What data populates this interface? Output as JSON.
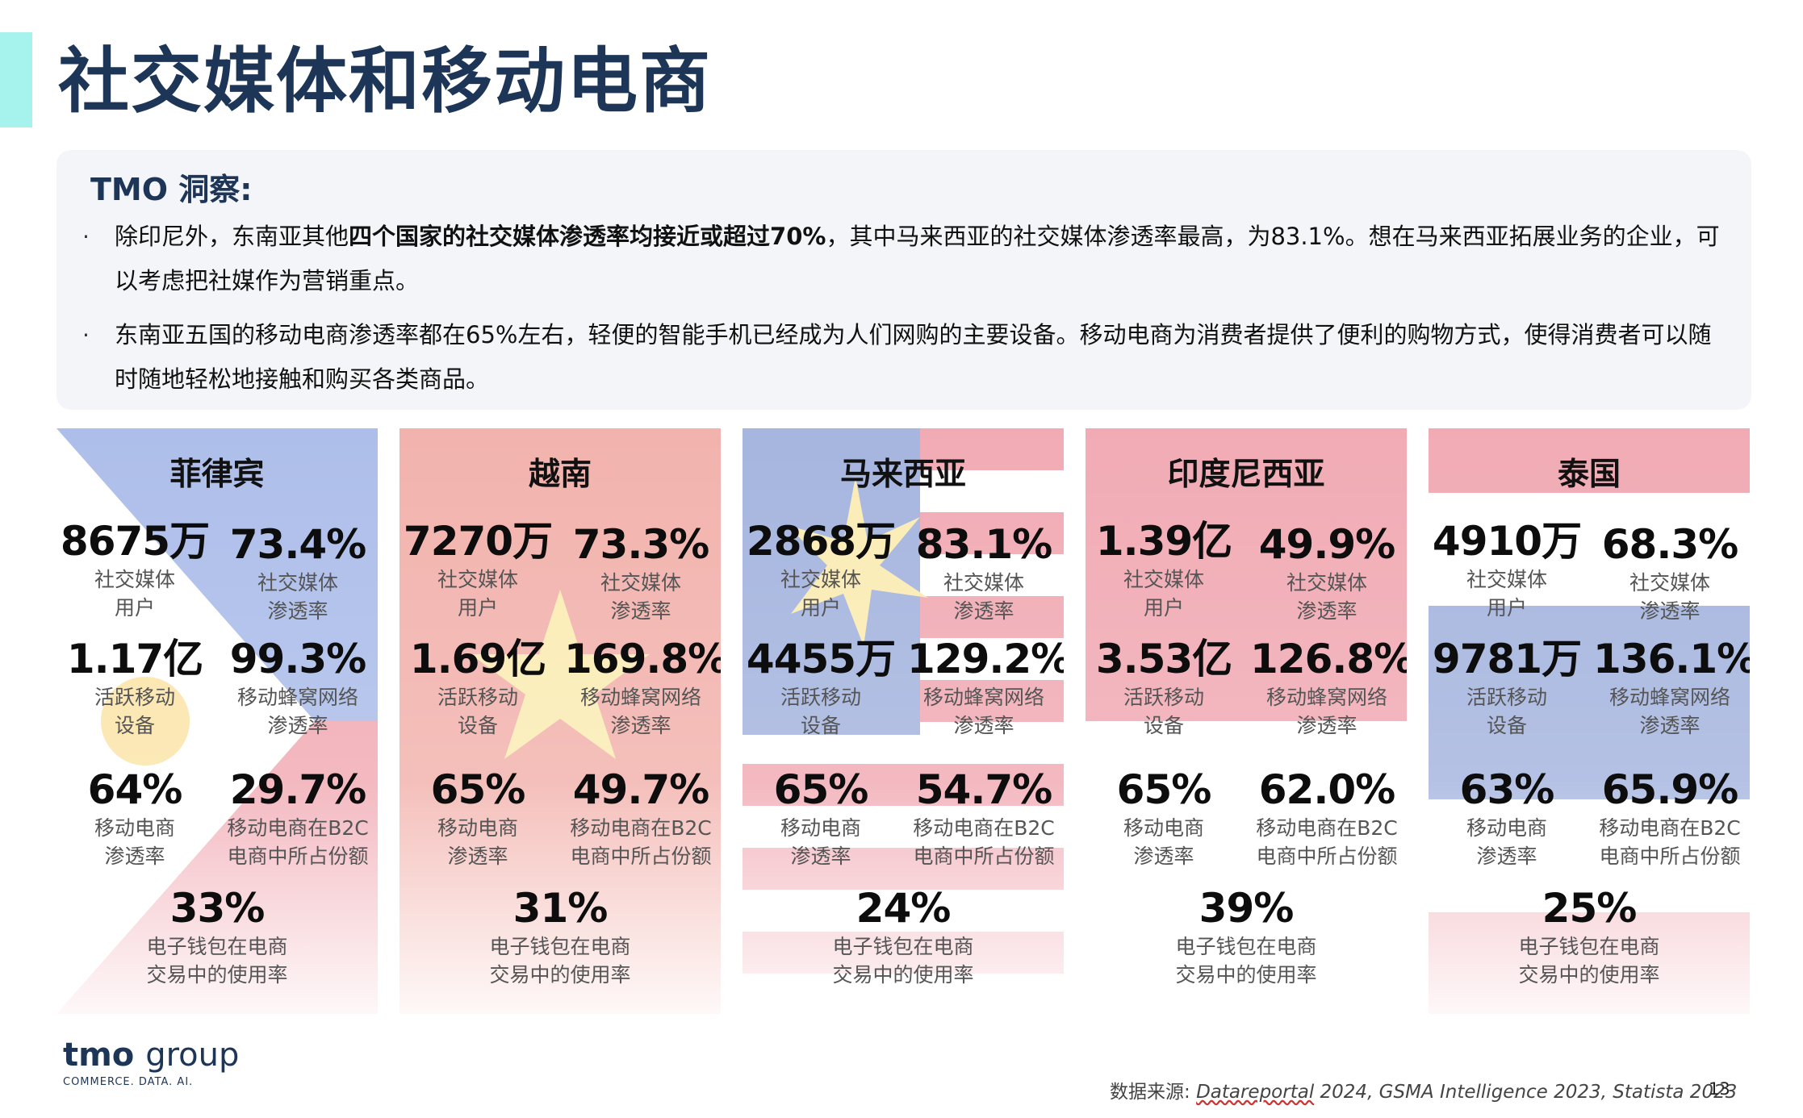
{
  "page_title": "社交媒体和移动电商",
  "insight": {
    "heading": "TMO 洞察:",
    "bullet_marker": "·",
    "b1_pre": "除印尼外，东南亚其他",
    "b1_bold": "四个国家的社交媒体渗透率均接近或超过70%",
    "b1_post": "，其中马来西亚的社交媒体渗透率最高，为83.1%。想在马来西亚拓展业务的企业，可以考虑把社媒作为营销重点。",
    "b2": "东南亚五国的移动电商渗透率都在65%左右，轻便的智能手机已经成为人们网购的主要设备。移动电商为消费者提供了便利的购物方式，使得消费者可以随时随地轻松地接触和购买各类商品。"
  },
  "labels": {
    "social_users_1": "社交媒体",
    "social_users_2": "用户",
    "social_pen_1": "社交媒体",
    "social_pen_2": "渗透率",
    "devices_1": "活跃移动",
    "devices_2": "设备",
    "cell_1": "移动蜂窝网络",
    "cell_2": "渗透率",
    "mcom_1": "移动电商",
    "mcom_2": "渗透率",
    "b2c_1": "移动电商在B2C",
    "b2c_2": "电商中所占份额",
    "wallet_1": "电子钱包在电商",
    "wallet_2": "交易中的使用率"
  },
  "countries": [
    {
      "name": "菲律宾",
      "social_users": "8675万",
      "social_pen": "73.4%",
      "devices": "1.17亿",
      "cell": "99.3%",
      "mcom": "64%",
      "b2c": "29.7%",
      "wallet": "33%"
    },
    {
      "name": "越南",
      "social_users": "7270万",
      "social_pen": "73.3%",
      "devices": "1.69亿",
      "cell": "169.8%",
      "mcom": "65%",
      "b2c": "49.7%",
      "wallet": "31%"
    },
    {
      "name": "马来西亚",
      "social_users": "2868万",
      "social_pen": "83.1%",
      "devices": "4455万",
      "cell": "129.2%",
      "mcom": "65%",
      "b2c": "54.7%",
      "wallet": "24%"
    },
    {
      "name": "印度尼西亚",
      "social_users": "1.39亿",
      "social_pen": "49.9%",
      "devices": "3.53亿",
      "cell": "126.8%",
      "mcom": "65%",
      "b2c": "62.0%",
      "wallet": "39%"
    },
    {
      "name": "泰国",
      "social_users": "4910万",
      "social_pen": "68.3%",
      "devices": "9781万",
      "cell": "136.1%",
      "mcom": "63%",
      "b2c": "65.9%",
      "wallet": "25%"
    }
  ],
  "footer": {
    "logo_tmo": "tmo",
    "logo_group": "group",
    "logo_tagline": "COMMERCE. DATA. AI.",
    "source_label": "数据来源: ",
    "source_dr": "Datareportal",
    "source_rest": " 2024, GSMA Intelligence 2023, Statista 2023",
    "page_number": "13"
  },
  "colors": {
    "title": "#1d3557",
    "accent": "#a6f3ee",
    "insight_bg": "#f4f5f8"
  }
}
